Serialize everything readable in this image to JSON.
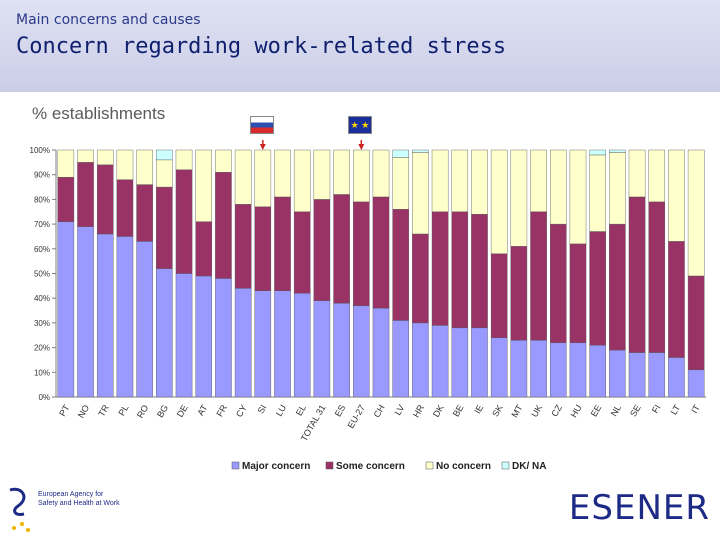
{
  "header": {
    "kicker": "Main concerns and causes",
    "title": "Concern regarding work-related stress"
  },
  "logos": {
    "agency_text": "European Agency for Safety and Health at Work",
    "esener": "ESENER"
  },
  "chart_data": {
    "type": "bar",
    "stacked": true,
    "ylabel": "% establishments",
    "ylim": [
      0,
      100
    ],
    "yticks": [
      "0%",
      "10%",
      "20%",
      "30%",
      "40%",
      "50%",
      "60%",
      "70%",
      "80%",
      "90%",
      "100%"
    ],
    "grid": false,
    "legend_position": "bottom",
    "categories": [
      "PT",
      "NO",
      "TR",
      "PL",
      "RO",
      "BG",
      "DE",
      "AT",
      "FR",
      "CY",
      "SI",
      "LU",
      "EL",
      "TOTAL 31",
      "ES",
      "EU-27",
      "CH",
      "LV",
      "HR",
      "DK",
      "BE",
      "IE",
      "SK",
      "MT",
      "UK",
      "CZ",
      "HU",
      "EE",
      "NL",
      "SE",
      "FI",
      "LT",
      "IT"
    ],
    "highlighted_categories": [
      "SI",
      "EU-27"
    ],
    "series": [
      {
        "name": "Major concern",
        "color": "#9999ff",
        "values": [
          71,
          69,
          66,
          65,
          63,
          52,
          50,
          49,
          48,
          44,
          43,
          43,
          42,
          39,
          38,
          37,
          36,
          31,
          30,
          29,
          28,
          28,
          24,
          23,
          23,
          22,
          22,
          21,
          19,
          18,
          18,
          16,
          11
        ]
      },
      {
        "name": "Some concern",
        "color": "#993366",
        "values": [
          18,
          26,
          28,
          23,
          23,
          33,
          42,
          22,
          43,
          34,
          34,
          38,
          33,
          41,
          44,
          42,
          45,
          45,
          36,
          46,
          47,
          46,
          34,
          38,
          52,
          48,
          40,
          46,
          51,
          63,
          61,
          47,
          38
        ]
      },
      {
        "name": "No concern",
        "color": "#ffffcc",
        "values": [
          11,
          5,
          6,
          12,
          14,
          11,
          8,
          29,
          9,
          22,
          23,
          19,
          25,
          20,
          18,
          21,
          19,
          21,
          33,
          25,
          25,
          26,
          42,
          39,
          25,
          30,
          38,
          31,
          29,
          19,
          21,
          37,
          51
        ]
      },
      {
        "name": "DK/ NA",
        "color": "#ccffff",
        "values": [
          0,
          0,
          0,
          0,
          0,
          4,
          0,
          0,
          0,
          0,
          0,
          0,
          0,
          0,
          0,
          0,
          0,
          3,
          1,
          0,
          0,
          0,
          0,
          0,
          0,
          0,
          0,
          2,
          1,
          0,
          0,
          0,
          0
        ]
      }
    ]
  }
}
